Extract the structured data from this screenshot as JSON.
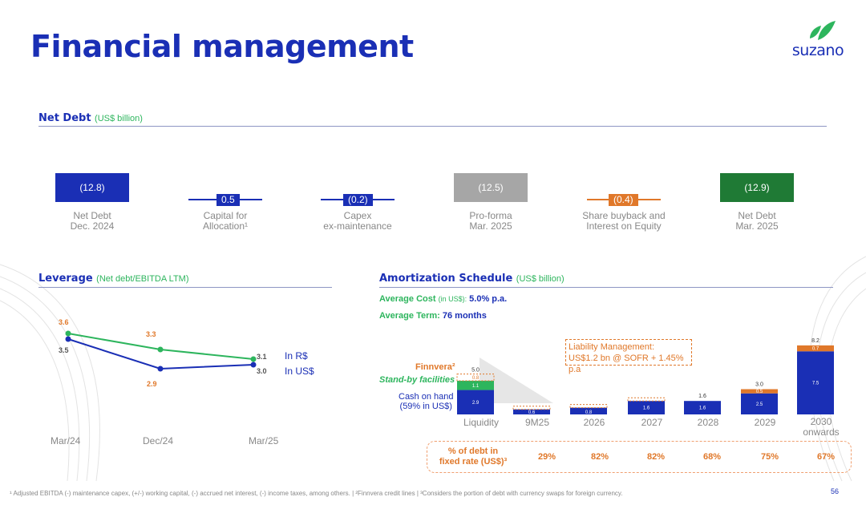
{
  "title": "Financial management",
  "logo": {
    "text": "suzano"
  },
  "net_debt": {
    "title": "Net Debt",
    "subtitle": "(US$ billion)",
    "items": [
      {
        "value": "(12.8)",
        "label_1": "Net Debt",
        "label_2": "Dec. 2024"
      },
      {
        "value": "0.5",
        "label_1": "Capital for",
        "label_2": "Allocation¹"
      },
      {
        "value": "(0.2)",
        "label_1": "Capex",
        "label_2": "ex-maintenance"
      },
      {
        "value": "(12.5)",
        "label_1": "Pro-forma",
        "label_2": "Mar. 2025"
      },
      {
        "value": "(0.4)",
        "label_1": "Share buyback and",
        "label_2": "Interest on Equity"
      },
      {
        "value": "(12.9)",
        "label_1": "Net Debt",
        "label_2": "Mar. 2025"
      }
    ],
    "colors": {
      "blue": "#1a2fb5",
      "gray": "#a6a6a6",
      "orange": "#e0782a",
      "green": "#1f7a35"
    }
  },
  "leverage": {
    "title": "Leverage",
    "subtitle": "(Net debt/EBITDA LTM)",
    "x_labels": [
      "Mar/24",
      "Dec/24",
      "Mar/25"
    ],
    "brl_values": [
      "3.6",
      "3.3",
      "3.1"
    ],
    "usd_values": [
      "3.5",
      "2.9",
      "3.0"
    ],
    "legend_brl": "In R$",
    "legend_usd": "In US$",
    "colors": {
      "brl": "#2db55d",
      "usd": "#1a2fb5"
    }
  },
  "amortization": {
    "title": "Amortization Schedule",
    "subtitle": "(US$ billion)",
    "avg_cost_label": "Average Cost",
    "avg_cost_note": "(in US$):",
    "avg_cost_value": "5.0% p.a.",
    "avg_term_label": "Average Term:",
    "avg_term_value": "76 months",
    "liability_note_1": "Liability Management:",
    "liability_note_2": "US$1.2 bn @ SOFR + 1.45% p.a",
    "finnvera_label": "Finnvera²",
    "standby_label": "Stand-by facilities",
    "cash_label_1": "Cash on hand",
    "cash_label_2": "(59% in US$)",
    "liquidity": {
      "cash": "2.9",
      "standby": "1.1",
      "finnvera": "0.8",
      "total": "5.0"
    },
    "periods": [
      {
        "label": "9M25",
        "value": "0.6"
      },
      {
        "label": "2026",
        "value": "0.8"
      },
      {
        "label": "2027",
        "value": "1.6"
      },
      {
        "label": "2028",
        "value": "1.6"
      },
      {
        "label": "2029",
        "blue": "2.5",
        "orange": "0.5",
        "total": "3.0"
      },
      {
        "label": "2030",
        "label_2": "onwards",
        "blue": "7.5",
        "orange": "0.7",
        "total": "8.2"
      }
    ],
    "liquidity_label": "Liquidity",
    "pct_label_1": "% of debt in",
    "pct_label_2": "fixed rate (US$)³",
    "pct_values": [
      "29%",
      "82%",
      "82%",
      "68%",
      "75%",
      "67%"
    ]
  },
  "footnote": "¹ Adjusted EBITDA (-) maintenance capex, (+/-) working capital, (-) accrued net interest, (-) income taxes, among others. | ²Finnvera credit lines | ³Considers the portion of debt with currency swaps for foreign currency.",
  "page_number": "56"
}
